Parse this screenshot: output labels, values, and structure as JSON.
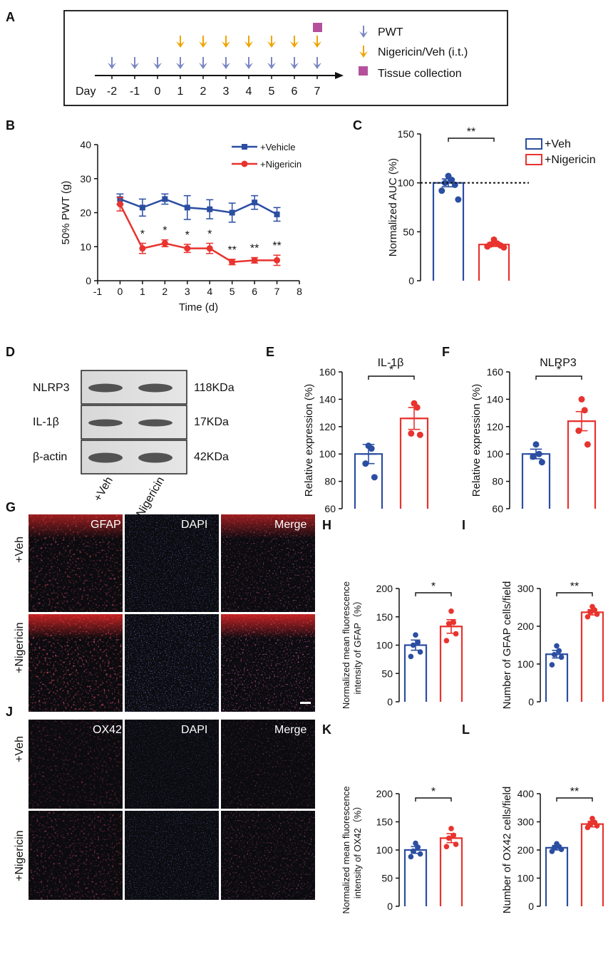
{
  "colors": {
    "vehicle": "#2b4ea2",
    "nigericin": "#e8332e",
    "pwt_arrow": "#7b86c4",
    "drug_arrow": "#f0a400",
    "tissue": "#b5519c"
  },
  "panel_labels": [
    "A",
    "B",
    "C",
    "D",
    "E",
    "F",
    "G",
    "H",
    "I",
    "J",
    "K",
    "L"
  ],
  "timeline": {
    "day_label": "Day",
    "days": [
      "-2",
      "-1",
      "0",
      "1",
      "2",
      "3",
      "4",
      "5",
      "6",
      "7"
    ],
    "legend": {
      "pwt": "PWT",
      "drug": "Nigericin/Veh (i.t.)",
      "tissue": "Tissue collection"
    }
  },
  "western": {
    "bands": [
      {
        "name": "NLRP3",
        "size": "118KDa"
      },
      {
        "name": "IL-1β",
        "size": "17KDa"
      },
      {
        "name": "β-actin",
        "size": "42KDa"
      }
    ],
    "lanes": [
      "+Veh",
      "+Nigericin"
    ]
  },
  "micrographs": {
    "g_channels": [
      "GFAP",
      "DAPI",
      "Merge"
    ],
    "j_channels": [
      "OX42",
      "DAPI",
      "Merge"
    ],
    "rows": [
      "+Veh",
      "+Nigericin"
    ]
  },
  "chart_data": [
    {
      "id": "B",
      "type": "line",
      "xlabel": "Time (d)",
      "ylabel": "50% PWT (g)",
      "xlim": [
        -1,
        8
      ],
      "ylim": [
        0,
        40
      ],
      "x": [
        0,
        1,
        2,
        3,
        4,
        5,
        6,
        7
      ],
      "series": [
        {
          "name": "+Vehicle",
          "values": [
            24,
            21.5,
            24,
            21.5,
            21,
            20,
            23,
            19.5
          ],
          "errors": [
            1.5,
            2.5,
            1.5,
            3.5,
            2.8,
            2.8,
            2,
            2
          ]
        },
        {
          "name": "+Nigericin",
          "values": [
            22.5,
            9.5,
            11,
            9.5,
            9.5,
            5.5,
            6,
            6
          ],
          "errors": [
            2,
            1.5,
            1,
            1.2,
            1.5,
            0.8,
            0.8,
            1.5
          ],
          "significance": [
            "",
            "*",
            "*",
            "*",
            "*",
            "**",
            "**",
            "**"
          ]
        }
      ]
    },
    {
      "id": "C",
      "type": "bar",
      "ylabel": "Normalized AUC (%)",
      "ylim": [
        0,
        150
      ],
      "reference_line": 100,
      "categories": [
        "+Veh",
        "+Nigericin"
      ],
      "values": [
        100,
        37
      ],
      "errors": [
        4,
        2
      ],
      "points": [
        [
          107,
          103,
          100,
          98,
          92,
          83
        ],
        [
          42,
          38,
          37,
          36,
          35,
          34
        ]
      ],
      "significance": "**"
    },
    {
      "id": "E",
      "type": "bar",
      "title": "IL-1β",
      "ylabel": "Relative expression (%)",
      "ylim": [
        60,
        160
      ],
      "categories": [
        "+Veh",
        "+Nigericin"
      ],
      "values": [
        100,
        126
      ],
      "errors": [
        7,
        8
      ],
      "points": [
        [
          106,
          104,
          93,
          83
        ],
        [
          137,
          134,
          115,
          114
        ]
      ],
      "significance": "*"
    },
    {
      "id": "F",
      "type": "bar",
      "title": "NLRP3",
      "ylabel": "Relative expression (%)",
      "ylim": [
        60,
        160
      ],
      "categories": [
        "+Veh",
        "+Nigericin"
      ],
      "values": [
        100,
        124
      ],
      "errors": [
        3.5,
        7
      ],
      "points": [
        [
          107,
          100,
          98,
          94
        ],
        [
          140,
          132,
          117,
          107
        ]
      ],
      "significance": "*"
    },
    {
      "id": "H",
      "type": "bar",
      "ylabel": "Normalized mean fluorescence intensity of GFAP（%）",
      "ylim": [
        0,
        200
      ],
      "categories": [
        "+Veh",
        "+Nigericin"
      ],
      "values": [
        100,
        133
      ],
      "errors": [
        9,
        12
      ],
      "points": [
        [
          118,
          105,
          100,
          88,
          80
        ],
        [
          160,
          140,
          138,
          120,
          108
        ]
      ],
      "significance": "*"
    },
    {
      "id": "I",
      "type": "bar",
      "ylabel": "Number of GFAP cells/field",
      "ylim": [
        0,
        300
      ],
      "categories": [
        "+Veh",
        "+Nigericin"
      ],
      "values": [
        126,
        237
      ],
      "errors": [
        10,
        7
      ],
      "points": [
        [
          148,
          135,
          125,
          118,
          98
        ],
        [
          252,
          243,
          238,
          232,
          225
        ]
      ],
      "significance": "**"
    },
    {
      "id": "K",
      "type": "bar",
      "ylabel": "Normalized mean fluorescence intensity of OX42（%）",
      "ylim": [
        0,
        200
      ],
      "categories": [
        "+Veh",
        "+Nigericin"
      ],
      "values": [
        100,
        121
      ],
      "errors": [
        6,
        8
      ],
      "points": [
        [
          112,
          105,
          98,
          93,
          88
        ],
        [
          138,
          126,
          121,
          110,
          106
        ]
      ],
      "significance": "*"
    },
    {
      "id": "L",
      "type": "bar",
      "ylabel": "Number of OX42 cells/field",
      "ylim": [
        0,
        400
      ],
      "categories": [
        "+Veh",
        "+Nigericin"
      ],
      "values": [
        208,
        292
      ],
      "errors": [
        8,
        10
      ],
      "points": [
        [
          222,
          212,
          208,
          202,
          195
        ],
        [
          312,
          298,
          292,
          286,
          280
        ]
      ],
      "significance": "**"
    }
  ]
}
